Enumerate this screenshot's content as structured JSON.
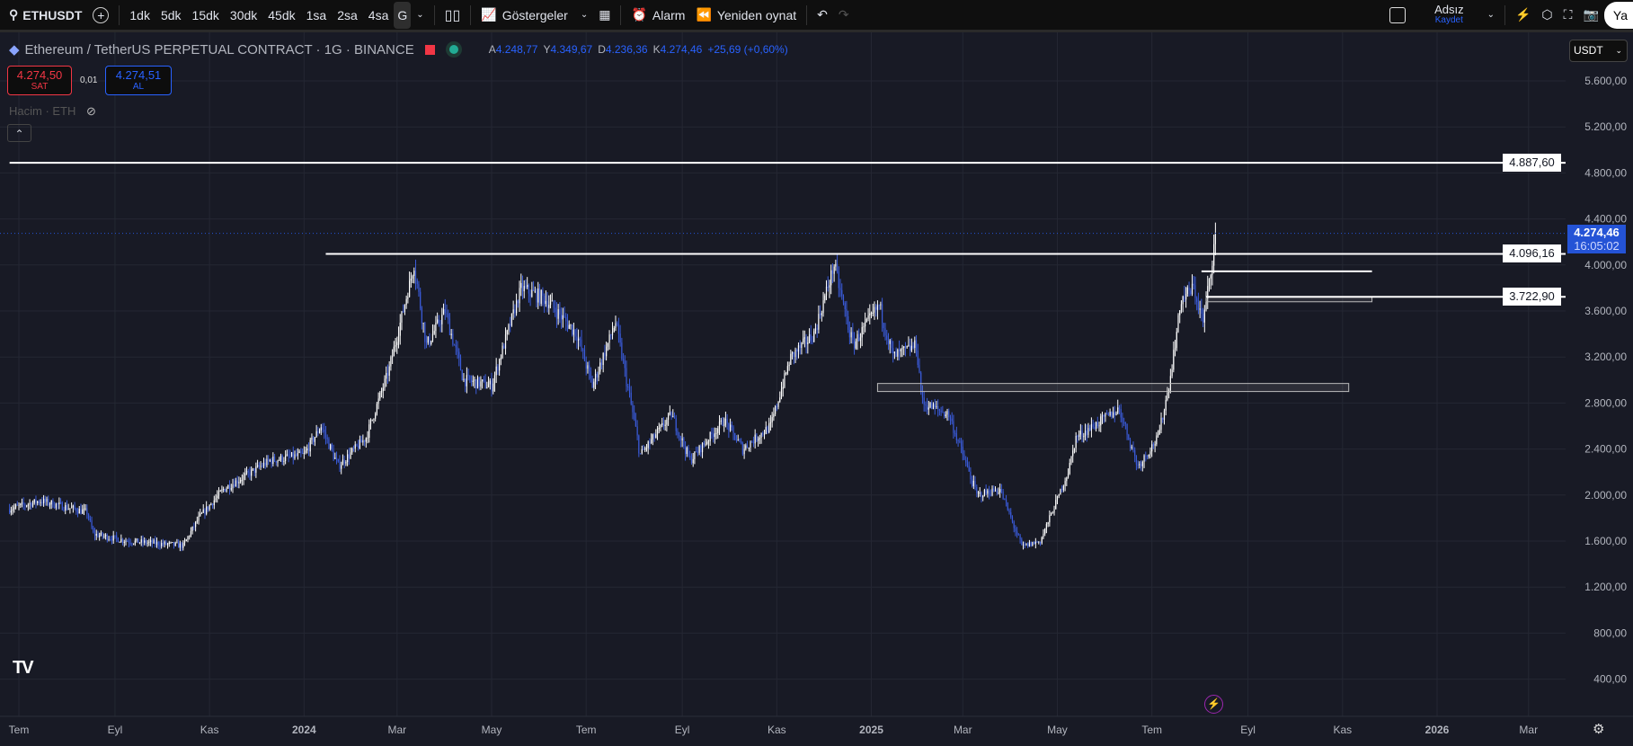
{
  "toolbar": {
    "symbol": "ETHUSDT",
    "intervals": [
      "1dk",
      "5dk",
      "15dk",
      "30dk",
      "45dk",
      "1sa",
      "2sa",
      "4sa",
      "G"
    ],
    "active_interval": "G",
    "indicators": "Göstergeler",
    "alarm": "Alarm",
    "replay": "Yeniden oynat",
    "layout_name": "Adsız",
    "save": "Kaydet",
    "publish": "Ya"
  },
  "legend": {
    "title": "Ethereum / TetherUS PERPETUAL CONTRACT · 1G · BINANCE",
    "open_label": "A",
    "open": "4.248,77",
    "high_label": "Y",
    "high": "4.349,67",
    "low_label": "D",
    "low": "4.236,36",
    "close_label": "K",
    "close": "4.274,46",
    "change": "+25,69 (+0,60%)",
    "sell_price": "4.274,50",
    "sell_label": "SAT",
    "spread": "0,01",
    "buy_price": "4.274,51",
    "buy_label": "AL",
    "volume": "Hacim · ETH"
  },
  "currency": "USDT",
  "colors": {
    "background": "#181a25",
    "up": "#ffffff",
    "down": "#3a5bd9",
    "last_price": "#2453d6",
    "sell": "#f23645",
    "buy": "#2962ff"
  },
  "chart_data": {
    "type": "candlestick",
    "y_ticks": [
      "5.600,00",
      "5.200,00",
      "4.800,00",
      "4.400,00",
      "4.000,00",
      "3.600,00",
      "3.200,00",
      "2.800,00",
      "2.400,00",
      "2.000,00",
      "1.600,00",
      "1.200,00",
      "800,00",
      "400,00"
    ],
    "y_tick_values": [
      5600,
      5200,
      4800,
      4400,
      4000,
      3600,
      3200,
      2800,
      2400,
      2000,
      1600,
      1200,
      800,
      400
    ],
    "x_ticks": [
      "Tem",
      "Eyl",
      "Kas",
      "2024",
      "Mar",
      "May",
      "Tem",
      "Eyl",
      "Kas",
      "2025",
      "Mar",
      "May",
      "Tem",
      "Eyl",
      "Kas",
      "2026",
      "Mar"
    ],
    "x_tick_dates": [
      "2023-07-01",
      "2023-09-01",
      "2023-11-01",
      "2024-01-01",
      "2024-03-01",
      "2024-05-01",
      "2024-07-01",
      "2024-09-01",
      "2024-11-01",
      "2025-01-01",
      "2025-03-01",
      "2025-05-01",
      "2025-07-01",
      "2025-09-01",
      "2025-11-01",
      "2026-01-01",
      "2026-03-01"
    ],
    "grid": true,
    "approx_close_path": [
      [
        "2023-06-25",
        1880
      ],
      [
        "2023-07-15",
        1950
      ],
      [
        "2023-08-14",
        1850
      ],
      [
        "2023-08-18",
        1660
      ],
      [
        "2023-09-10",
        1600
      ],
      [
        "2023-10-15",
        1560
      ],
      [
        "2023-10-25",
        1800
      ],
      [
        "2023-11-10",
        2050
      ],
      [
        "2023-12-10",
        2300
      ],
      [
        "2024-01-01",
        2350
      ],
      [
        "2024-01-12",
        2600
      ],
      [
        "2024-01-23",
        2250
      ],
      [
        "2024-02-10",
        2500
      ],
      [
        "2024-02-25",
        3100
      ],
      [
        "2024-03-12",
        4000
      ],
      [
        "2024-03-20",
        3300
      ],
      [
        "2024-04-01",
        3600
      ],
      [
        "2024-04-13",
        3000
      ],
      [
        "2024-05-01",
        2950
      ],
      [
        "2024-05-20",
        3800
      ],
      [
        "2024-06-05",
        3700
      ],
      [
        "2024-06-25",
        3400
      ],
      [
        "2024-07-05",
        2950
      ],
      [
        "2024-07-20",
        3500
      ],
      [
        "2024-08-05",
        2350
      ],
      [
        "2024-08-25",
        2700
      ],
      [
        "2024-09-06",
        2300
      ],
      [
        "2024-09-28",
        2650
      ],
      [
        "2024-10-10",
        2400
      ],
      [
        "2024-10-28",
        2600
      ],
      [
        "2024-11-10",
        3200
      ],
      [
        "2024-11-25",
        3400
      ],
      [
        "2024-12-08",
        4000
      ],
      [
        "2024-12-20",
        3300
      ],
      [
        "2025-01-06",
        3650
      ],
      [
        "2025-01-15",
        3200
      ],
      [
        "2025-01-30",
        3300
      ],
      [
        "2025-02-03",
        2800
      ],
      [
        "2025-02-20",
        2700
      ],
      [
        "2025-03-10",
        2000
      ],
      [
        "2025-03-25",
        2050
      ],
      [
        "2025-04-08",
        1550
      ],
      [
        "2025-04-20",
        1600
      ],
      [
        "2025-05-08",
        2200
      ],
      [
        "2025-05-13",
        2500
      ],
      [
        "2025-06-10",
        2750
      ],
      [
        "2025-06-22",
        2250
      ],
      [
        "2025-07-05",
        2500
      ],
      [
        "2025-07-12",
        2950
      ],
      [
        "2025-07-20",
        3700
      ],
      [
        "2025-07-28",
        3800
      ],
      [
        "2025-08-03",
        3500
      ],
      [
        "2025-08-09",
        4050
      ],
      [
        "2025-08-11",
        4274.46
      ]
    ],
    "horizontal_lines": [
      {
        "price": 4887.6,
        "label": "4.887,60",
        "from": "2023-06-25"
      },
      {
        "price": 4096.16,
        "label": "4.096,16",
        "from": "2024-01-15"
      },
      {
        "price": 3722.9,
        "label": "3.722,90",
        "from": "2025-08-05"
      }
    ],
    "rays": [
      {
        "price": 3945,
        "from": "2025-08-02",
        "to": "2025-11-20"
      }
    ],
    "rectangles": [
      {
        "from": "2025-08-05",
        "to": "2025-11-20",
        "top": 3720,
        "bottom": 3680
      },
      {
        "from": "2025-01-05",
        "to": "2025-11-05",
        "top": 2970,
        "bottom": 2900
      }
    ],
    "last_price": {
      "label": "4.274,46",
      "countdown": "16:05:02",
      "value": 4274.46
    }
  }
}
